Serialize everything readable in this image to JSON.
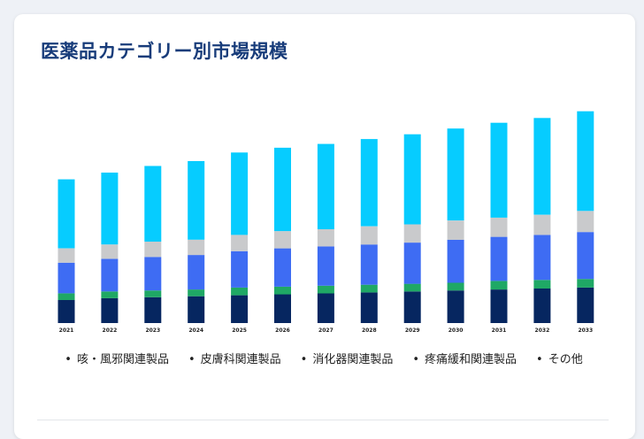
{
  "title": "医薬品カテゴリー別市場規模",
  "chart_data": {
    "type": "bar",
    "stacked": true,
    "title": "医薬品カテゴリー別市場規模",
    "categories": [
      "2021",
      "2022",
      "2023",
      "2024",
      "2025",
      "2026",
      "2027",
      "2028",
      "2029",
      "2030",
      "2031",
      "2032",
      "2033"
    ],
    "series": [
      {
        "name": "咳・風邪関連製品",
        "color": "#062660",
        "values": [
          24,
          26,
          27,
          28,
          29,
          30,
          31,
          32,
          33,
          34,
          35,
          36,
          37
        ]
      },
      {
        "name": "皮膚科関連製品",
        "color": "#1fa865",
        "values": [
          7,
          7,
          7,
          7,
          8,
          8,
          8,
          8,
          8,
          8,
          9,
          9,
          9
        ]
      },
      {
        "name": "消化器関連製品",
        "color": "#3e6cf3",
        "values": [
          32,
          34,
          35,
          36,
          38,
          40,
          41,
          42,
          43,
          45,
          46,
          47,
          49
        ]
      },
      {
        "name": "疼痛緩和関連製品",
        "color": "#c9cacc",
        "values": [
          15,
          15,
          16,
          16,
          17,
          18,
          18,
          19,
          19,
          20,
          20,
          21,
          22
        ]
      },
      {
        "name": "その他",
        "color": "#06ccff",
        "values": [
          72,
          75,
          79,
          82,
          86,
          87,
          89,
          91,
          94,
          96,
          99,
          101,
          104
        ]
      }
    ],
    "ylim": [
      0,
      230
    ],
    "grid": false,
    "legend_position": "bottom"
  }
}
